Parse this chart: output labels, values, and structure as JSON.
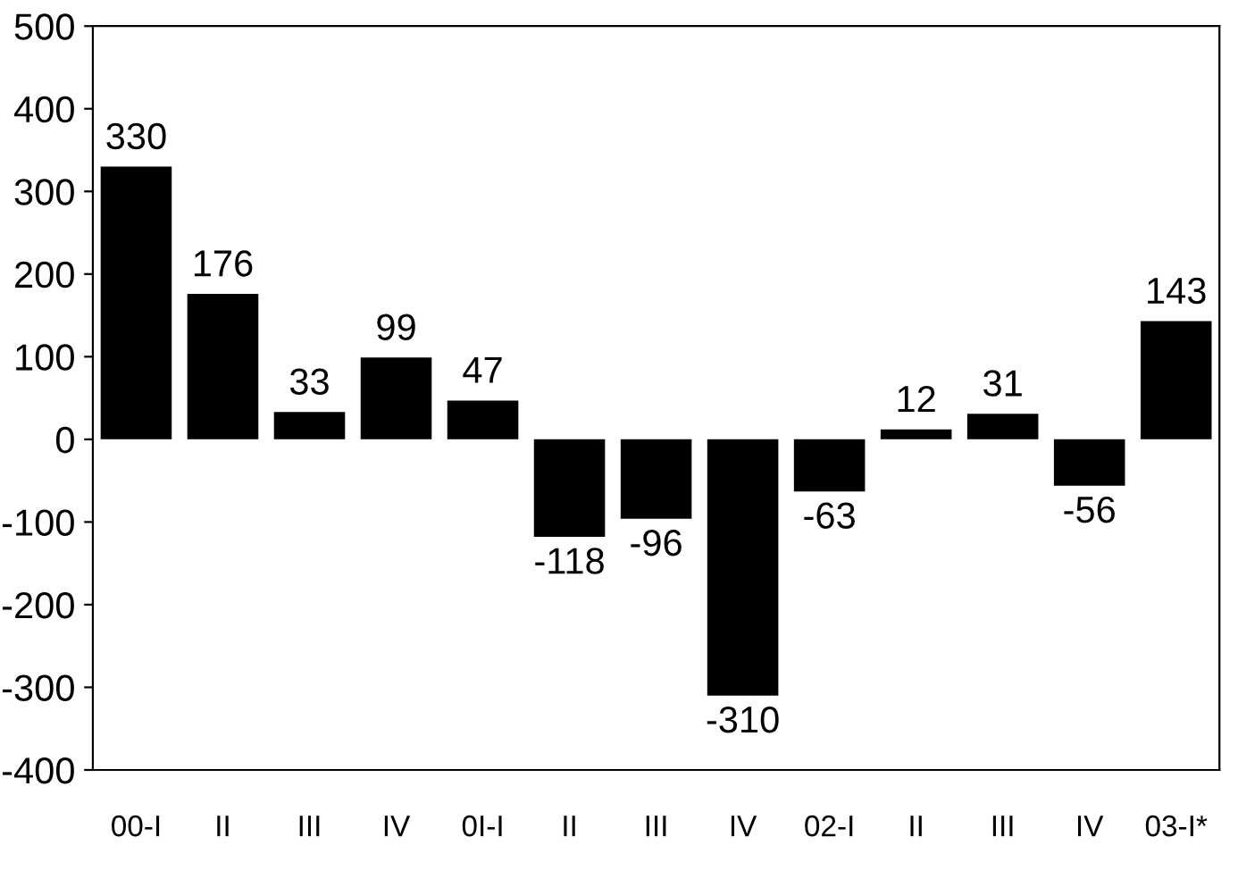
{
  "chart_data": {
    "type": "bar",
    "categories": [
      "00-I",
      "II",
      "III",
      "IV",
      "0I-I",
      "II",
      "III",
      "IV",
      "02-I",
      "II",
      "III",
      "IV",
      "03-I*"
    ],
    "values": [
      330,
      176,
      33,
      99,
      47,
      -118,
      -96,
      -310,
      -63,
      12,
      31,
      -56,
      143
    ],
    "color": "#000000",
    "data_labels": true,
    "ylim": [
      -400,
      500
    ],
    "yticks": [
      -400,
      -300,
      -200,
      -100,
      0,
      100,
      200,
      300,
      400,
      500
    ],
    "grid": false,
    "legend": false
  }
}
